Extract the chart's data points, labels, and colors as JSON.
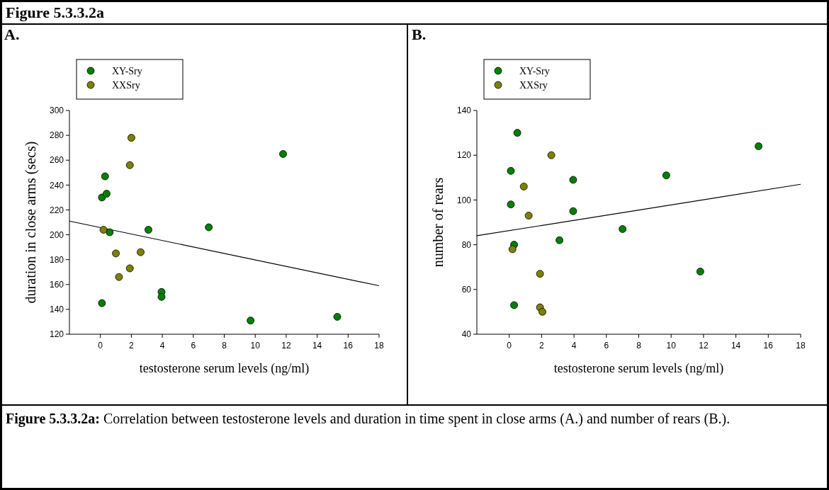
{
  "chart_data": [
    {
      "type": "scatter",
      "title": "A.",
      "xlabel": "testosterone serum levels (ng/ml)",
      "ylabel": "duration in close arms (secs)",
      "xlim": [
        -2,
        18
      ],
      "xticks": [
        0,
        2,
        4,
        6,
        8,
        10,
        12,
        14,
        16,
        18
      ],
      "ylim": [
        120,
        300
      ],
      "yticks": [
        120,
        140,
        160,
        180,
        200,
        220,
        240,
        260,
        280,
        300
      ],
      "legend": "top left",
      "marker": "circle",
      "grid": false,
      "annotations": [
        "Figure 5.3.3.2a",
        "Figure 5.3.3.2a: Correlation between testosterone levels and duration in time spent in close arms (A.) and number of rears (B.)."
      ],
      "series": [
        {
          "name": "XY-Sry",
          "color": "#008000",
          "x": [
            0.1,
            0.3,
            0.1,
            0.4,
            0.6,
            3.1,
            3.95,
            3.95,
            7,
            9.7,
            11.8,
            15.3
          ],
          "values": [
            145,
            247,
            230,
            233,
            202,
            204,
            154,
            150,
            206,
            131,
            265,
            134
          ]
        },
        {
          "name": "XXSry",
          "color": "#808000",
          "x": [
            0.2,
            1.0,
            1.2,
            1.9,
            1.9,
            2.0,
            2.6
          ],
          "values": [
            204,
            185,
            166,
            173,
            256,
            278,
            186
          ]
        },
        {
          "type": "line",
          "marker": "none",
          "color": "#000000",
          "x": [
            -2,
            18
          ],
          "values": [
            211,
            159
          ]
        }
      ]
    },
    {
      "type": "scatter",
      "title": "B.",
      "xlabel": "testosterone serum levels (ng/ml)",
      "ylabel": "number of rears",
      "xlim": [
        -2,
        18
      ],
      "xticks": [
        0,
        2,
        4,
        6,
        8,
        10,
        12,
        14,
        16,
        18
      ],
      "ylim": [
        40,
        140
      ],
      "yticks": [
        40,
        60,
        80,
        100,
        120,
        140
      ],
      "legend": "top left",
      "marker": "circle",
      "grid": false,
      "series": [
        {
          "name": "XY-Sry",
          "color": "#008000",
          "x": [
            0.1,
            0.1,
            0.5,
            0.3,
            0.3,
            3.1,
            3.95,
            3.95,
            7,
            9.7,
            11.8,
            15.4
          ],
          "values": [
            113,
            98,
            130,
            80,
            53,
            82,
            109,
            95,
            87,
            111,
            68,
            124
          ]
        },
        {
          "name": "XXSry",
          "color": "#808000",
          "x": [
            0.2,
            0.9,
            1.2,
            1.9,
            1.9,
            2.05,
            2.6
          ],
          "values": [
            78,
            106,
            93,
            67,
            52,
            50,
            120
          ]
        },
        {
          "type": "line",
          "marker": "none",
          "color": "#000000",
          "x": [
            -2,
            18
          ],
          "values": [
            84,
            107
          ]
        }
      ]
    }
  ]
}
